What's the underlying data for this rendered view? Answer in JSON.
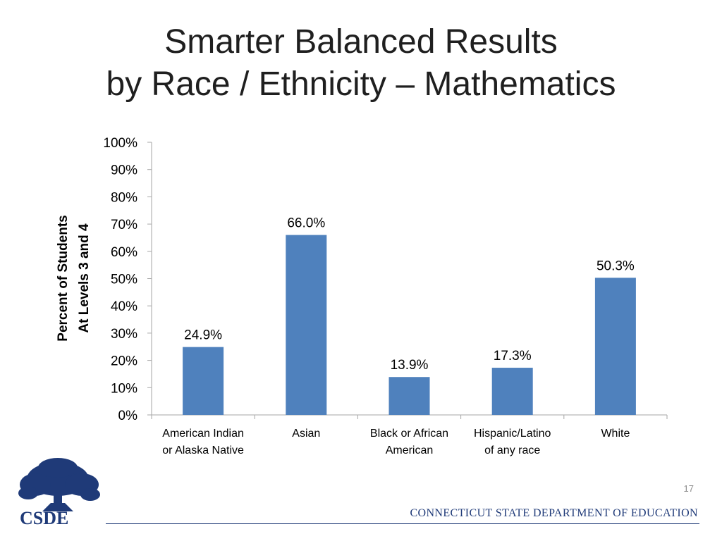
{
  "slide": {
    "title_line1": "Smarter Balanced Results",
    "title_line2": "by Race / Ethnicity – Mathematics",
    "page_number": "17",
    "footer": "CONNECTICUT STATE DEPARTMENT OF EDUCATION",
    "logo_text": "CSDE"
  },
  "colors": {
    "bar": "#4f81bd",
    "axis": "#a6a6a6",
    "text": "#000000",
    "brand": "#1f3a78"
  },
  "chart_data": {
    "type": "bar",
    "ylabel_line1": "Percent of Students",
    "ylabel_line2": "At Levels 3 and 4",
    "ylim": [
      0,
      100
    ],
    "ytick_step": 10,
    "ytick_suffix": "%",
    "grid": false,
    "legend": "none",
    "categories": [
      [
        "American Indian",
        "or Alaska Native"
      ],
      [
        "Asian"
      ],
      [
        "Black or African",
        "American"
      ],
      [
        "Hispanic/Latino",
        "of any race"
      ],
      [
        "White"
      ]
    ],
    "values": [
      24.9,
      66.0,
      13.9,
      17.3,
      50.3
    ],
    "data_labels": [
      "24.9%",
      "66.0%",
      "13.9%",
      "17.3%",
      "50.3%"
    ]
  }
}
